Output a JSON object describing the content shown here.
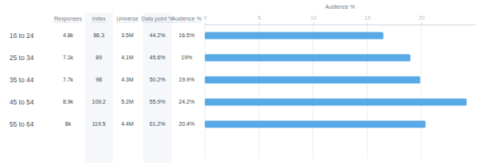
{
  "chart_data": {
    "type": "bar",
    "orientation": "horizontal",
    "x_label": "Audience %",
    "categories": [
      "16 to 24",
      "25 to 34",
      "35 to 44",
      "45 to 54",
      "55 to 64"
    ],
    "values": [
      16.5,
      19,
      19.9,
      24.2,
      20.4
    ],
    "value_labels": [
      "16.5%",
      "19%",
      "19.9%",
      "24.2%",
      "20.4%"
    ],
    "color": "#58aae6",
    "xlim": [
      0,
      25
    ],
    "xticks": [
      0,
      5,
      10,
      15,
      20
    ],
    "grid": true
  },
  "table": {
    "columns": [
      "Responses",
      "Index",
      "Universe",
      "Data point %",
      "Audience %"
    ],
    "rows": [
      [
        "4.8k",
        "86.3",
        "3.5M",
        "44.2%"
      ],
      [
        "7.1k",
        "89",
        "4.1M",
        "45.6%"
      ],
      [
        "7.7k",
        "98",
        "4.3M",
        "50.2%"
      ],
      [
        "8.9k",
        "109.2",
        "5.2M",
        "55.9%"
      ],
      [
        "8k",
        "119.5",
        "4.4M",
        "61.2%"
      ]
    ]
  }
}
